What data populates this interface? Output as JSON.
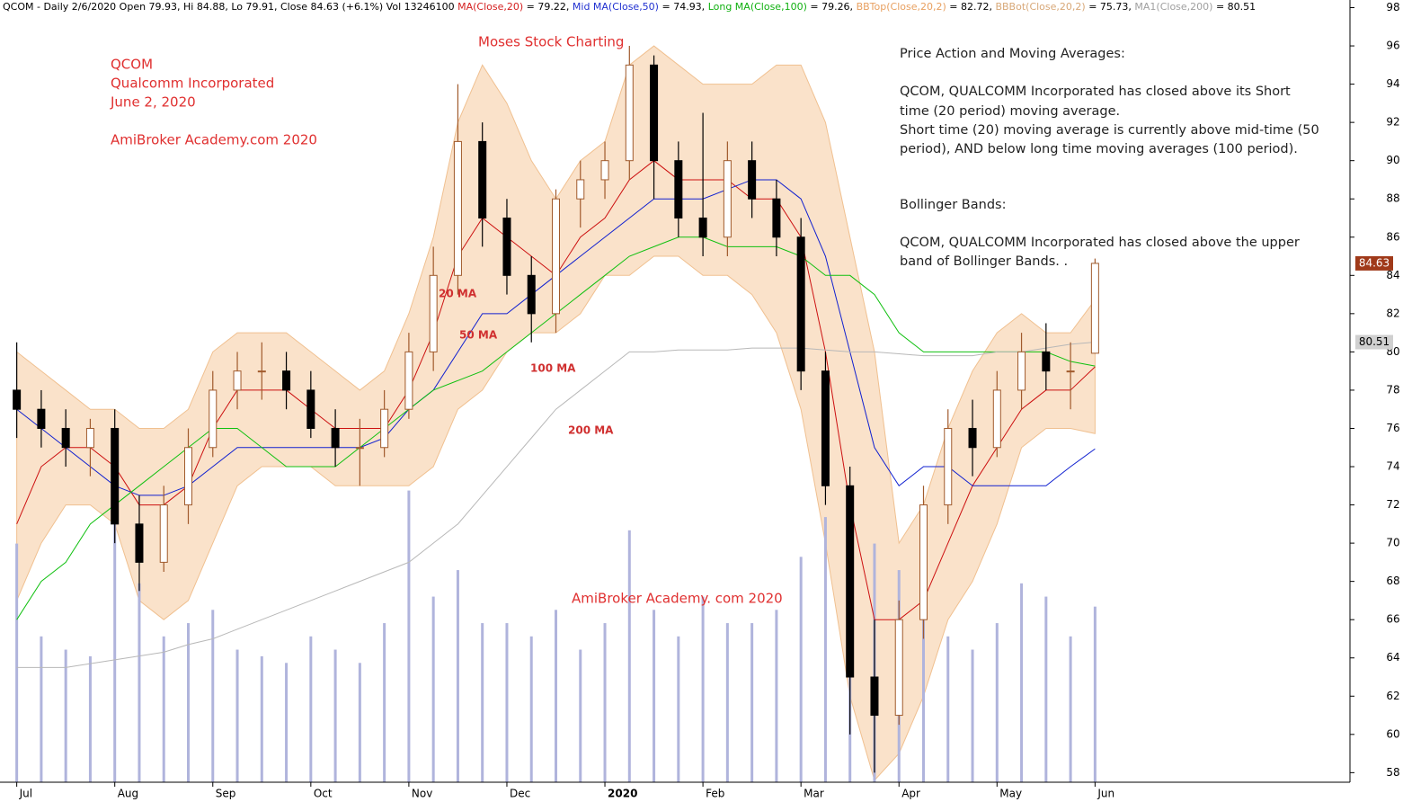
{
  "chart_data": {
    "type": "candlestick",
    "header": [
      {
        "text": "QCOM - Daily 2/6/2020 Open 79.93, Hi 84.88, Lo 79.91, Close 84.63 (+6.1%) Vol 13246100 ",
        "color": "#000000"
      },
      {
        "text": "MA(Close,20)",
        "color": "#d42020"
      },
      {
        "text": " = 79.22, ",
        "color": "#000000"
      },
      {
        "text": "Mid MA(Close,50)",
        "color": "#2030d0"
      },
      {
        "text": " = 74.93, ",
        "color": "#000000"
      },
      {
        "text": "Long MA(Close,100)",
        "color": "#10b010"
      },
      {
        "text": " = 79.26, ",
        "color": "#000000"
      },
      {
        "text": "BBTop(Close,20,2)",
        "color": "#e8a060"
      },
      {
        "text": " = 82.72, ",
        "color": "#000000"
      },
      {
        "text": "BBBot(Close,20,2)",
        "color": "#d8a878"
      },
      {
        "text": " = 75.73, ",
        "color": "#000000"
      },
      {
        "text": "MA1(Close,200)",
        "color": "#a0a0a0"
      },
      {
        "text": " = 80.51",
        "color": "#000000"
      }
    ],
    "annotations": [
      "QCOM",
      "Qualcomm Incorporated",
      "June 2, 2020",
      "AmiBroker Academy.com 2020",
      "Moses Stock Charting",
      "AmiBroker Academy. com 2020"
    ],
    "notes": [
      "Price Action and Moving Averages:",
      "QCOM, QUALCOMM Incorporated has closed above its Short",
      "time (20 period) moving average.",
      "Short time (20) moving average is currently above mid-time (50",
      "period), AND below long time moving averages (100 period).",
      "Bollinger Bands:",
      "QCOM, QUALCOMM Incorporated has closed above the upper",
      "band  of Bollinger Bands. ."
    ],
    "categories": [
      "Jul",
      null,
      null,
      null,
      "Aug",
      null,
      null,
      null,
      "Sep",
      null,
      null,
      null,
      "Oct",
      null,
      null,
      null,
      "Nov",
      null,
      null,
      null,
      "Dec",
      null,
      null,
      null,
      "2020",
      null,
      null,
      null,
      "Feb",
      null,
      null,
      null,
      "Mar",
      null,
      null,
      null,
      "Apr",
      null,
      null,
      null,
      "May",
      null,
      null,
      null,
      "Jun"
    ],
    "open": [
      78,
      77,
      76,
      75,
      76,
      71,
      69,
      72,
      75,
      78,
      79,
      79,
      78,
      76,
      75,
      75,
      77,
      80,
      84,
      91,
      87,
      84,
      82,
      88,
      89,
      90,
      95,
      90,
      87,
      86,
      90,
      88,
      86,
      79,
      73,
      63,
      61,
      66,
      72,
      76,
      75,
      78,
      80,
      79,
      79.93
    ],
    "high": [
      80.5,
      78,
      77,
      76.5,
      77,
      72.5,
      73,
      76,
      79,
      80,
      80.5,
      80,
      79,
      77,
      76.5,
      78,
      81,
      85.5,
      94,
      92,
      88,
      85,
      88.5,
      90,
      91,
      96,
      95.5,
      91,
      92.5,
      91,
      91,
      89,
      87,
      80,
      74,
      66,
      67,
      73,
      77,
      77.5,
      79,
      81,
      81.5,
      80.5,
      84.88
    ],
    "low": [
      75.5,
      75,
      74,
      73.5,
      70,
      67.5,
      68.5,
      71,
      74.5,
      77,
      77.5,
      77,
      75.5,
      74,
      73,
      74.5,
      76.5,
      79,
      83,
      85.5,
      83,
      80.5,
      81,
      86.5,
      88,
      89,
      88,
      86,
      85,
      85,
      87,
      85,
      78,
      72,
      60,
      58,
      60.5,
      65,
      71,
      73.5,
      74.5,
      77,
      78,
      77,
      79.91
    ],
    "close": [
      77,
      76,
      75,
      76,
      71,
      69,
      72,
      75,
      78,
      79,
      79,
      78,
      76,
      75,
      75,
      77,
      80,
      84,
      91,
      87,
      84,
      82,
      88,
      89,
      90,
      95,
      90,
      87,
      86,
      90,
      88,
      86,
      79,
      73,
      63,
      61,
      66,
      72,
      76,
      75,
      78,
      80,
      79,
      79,
      84.63
    ],
    "up_color": "#a05a2c",
    "down_color": "#000000",
    "volume": [
      18000000,
      11000000,
      10000000,
      9500000,
      20000000,
      15000000,
      11000000,
      12000000,
      13000000,
      10000000,
      9500000,
      9000000,
      11000000,
      10000000,
      9000000,
      12000000,
      22000000,
      14000000,
      16000000,
      12000000,
      12000000,
      11000000,
      13000000,
      10000000,
      12000000,
      19000000,
      13000000,
      11000000,
      14000000,
      12000000,
      12000000,
      13000000,
      17000000,
      20000000,
      21000000,
      18000000,
      16000000,
      13000000,
      11000000,
      10000000,
      12000000,
      15000000,
      14000000,
      11000000,
      13246100
    ],
    "vlim": [
      0,
      59000000
    ],
    "volume_color": "#b0b4dc",
    "lines": [
      {
        "name": "20 MA",
        "color": "#cc1010",
        "values": [
          71,
          74,
          75,
          75,
          74,
          72,
          72,
          73,
          76,
          78,
          78,
          78,
          77,
          76,
          76,
          76,
          78,
          81,
          85,
          87,
          86,
          85,
          84,
          86,
          87,
          89,
          90,
          89,
          89,
          89,
          88,
          88,
          86,
          80,
          72,
          66,
          66,
          67,
          70,
          73,
          75,
          77,
          78,
          78,
          79.22
        ]
      },
      {
        "name": "50 MA",
        "color": "#1020d0",
        "values": [
          77,
          76,
          75,
          74,
          73,
          72.5,
          72.5,
          73,
          74,
          75,
          75,
          75,
          75,
          75,
          75,
          75.5,
          77,
          78,
          80,
          82,
          82,
          83,
          84,
          85,
          86,
          87,
          88,
          88,
          88,
          88.5,
          89,
          89,
          88,
          85,
          80,
          75,
          73,
          74,
          74,
          73,
          73,
          73,
          73,
          74,
          74.93
        ]
      },
      {
        "name": "100 MA",
        "color": "#10c010",
        "values": [
          66,
          68,
          69,
          71,
          72,
          73,
          74,
          75,
          76,
          76,
          75,
          74,
          74,
          74,
          75,
          76,
          77,
          78,
          78.5,
          79,
          80,
          81,
          82,
          83,
          84,
          85,
          85.5,
          86,
          86,
          85.5,
          85.5,
          85.5,
          85,
          84,
          84,
          83,
          81,
          80,
          80,
          80,
          80,
          80,
          80,
          79.5,
          79.26
        ]
      },
      {
        "name": "200 MA",
        "color": "#b8b8b8",
        "values": [
          63.5,
          63.5,
          63.5,
          63.7,
          63.9,
          64.1,
          64.3,
          64.7,
          65,
          65.5,
          66,
          66.5,
          67,
          67.5,
          68,
          68.5,
          69,
          70,
          71,
          72.5,
          74,
          75.5,
          77,
          78,
          79,
          80,
          80,
          80.1,
          80.1,
          80.1,
          80.2,
          80.2,
          80.2,
          80.1,
          80,
          80,
          79.9,
          79.8,
          79.8,
          79.8,
          80,
          80,
          80.2,
          80.4,
          80.51
        ]
      }
    ],
    "band": {
      "color": "#f8d8b8",
      "upper": [
        80,
        79,
        78,
        77,
        77,
        76,
        76,
        77,
        80,
        81,
        81,
        81,
        80,
        79,
        78,
        79,
        82,
        86,
        92,
        95,
        93,
        90,
        88,
        90,
        91,
        95,
        96,
        95,
        94,
        94,
        94,
        95,
        95,
        92,
        86,
        80,
        70,
        72,
        76,
        79,
        81,
        82,
        81,
        81,
        82.72
      ],
      "lower": [
        67,
        70,
        72,
        72,
        71,
        67,
        66,
        67,
        70,
        73,
        74,
        74,
        74,
        73,
        73,
        73,
        73,
        74,
        77,
        78,
        80,
        81,
        81,
        82,
        84,
        84,
        85,
        85,
        84,
        84,
        83,
        81,
        77,
        70,
        62,
        57.6,
        59,
        62,
        66,
        68,
        71,
        75,
        76,
        76,
        75.73
      ]
    },
    "ylim": [
      57.5,
      98.4
    ],
    "yticks": [
      58,
      60,
      62,
      64,
      66,
      68,
      70,
      72,
      74,
      76,
      78,
      80,
      82,
      84,
      86,
      88,
      90,
      92,
      94,
      96,
      98
    ]
  }
}
